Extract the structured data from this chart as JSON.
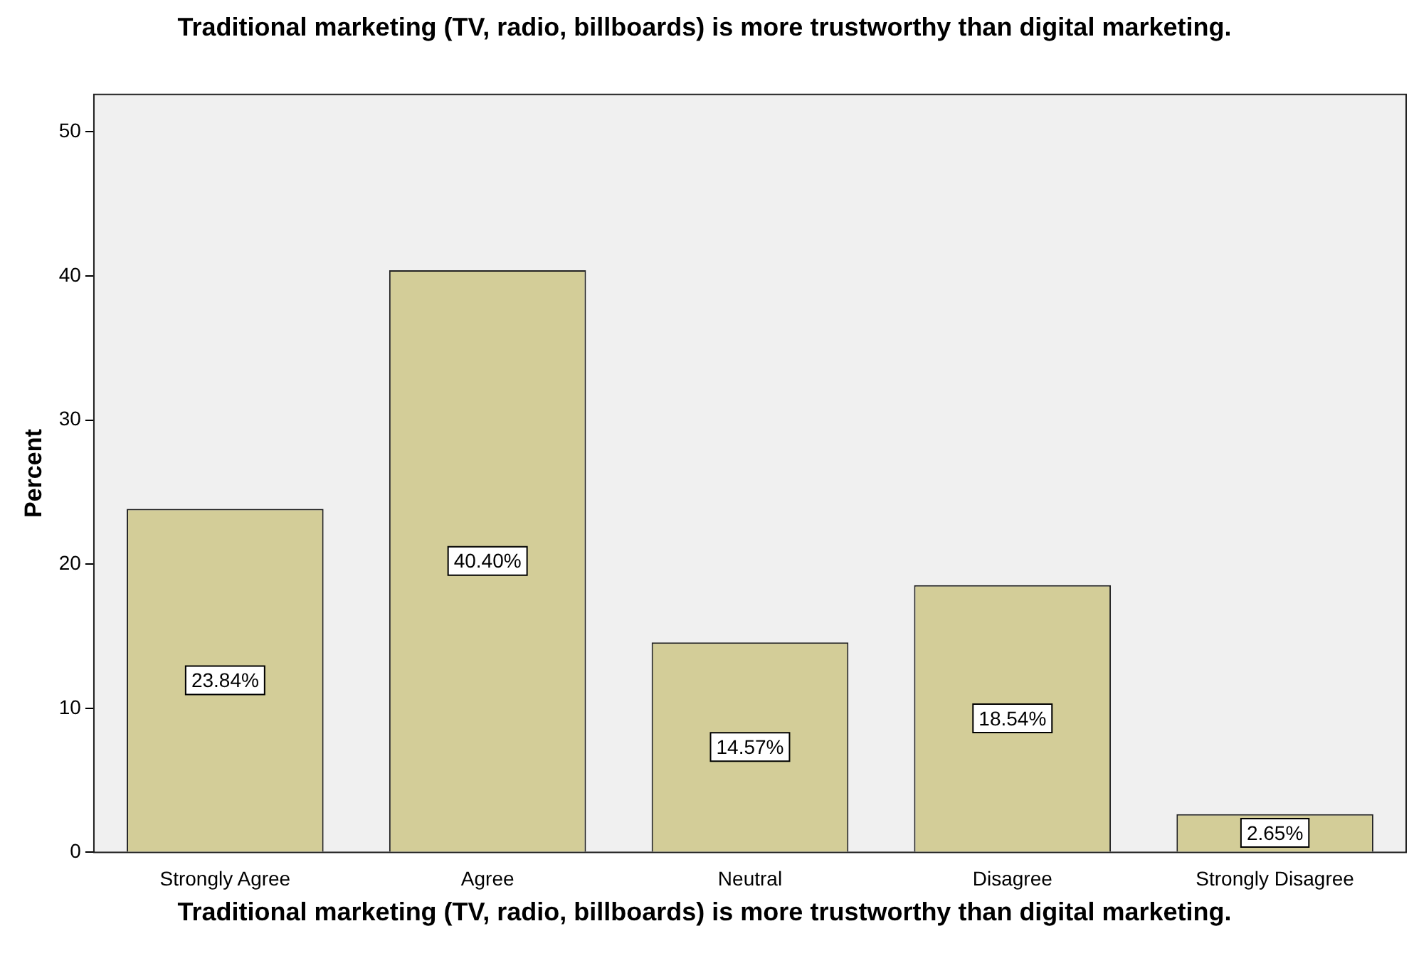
{
  "chart_data": {
    "type": "bar",
    "title": "Traditional marketing (TV, radio, billboards) is more trustworthy than digital marketing.",
    "xlabel": "Traditional marketing (TV, radio, billboards) is more trustworthy than digital marketing.",
    "ylabel": "Percent",
    "categories": [
      "Strongly Agree",
      "Agree",
      "Neutral",
      "Disagree",
      "Strongly Disagree"
    ],
    "values": [
      23.84,
      40.4,
      14.57,
      18.54,
      2.65
    ],
    "value_labels": [
      "23.84%",
      "40.40%",
      "14.57%",
      "18.54%",
      "2.65%"
    ],
    "color": "#d3cd98",
    "ylim": [
      0,
      52.6
    ],
    "yticks": [
      0,
      10,
      20,
      30,
      40,
      50
    ],
    "grid": false,
    "legend": false
  }
}
